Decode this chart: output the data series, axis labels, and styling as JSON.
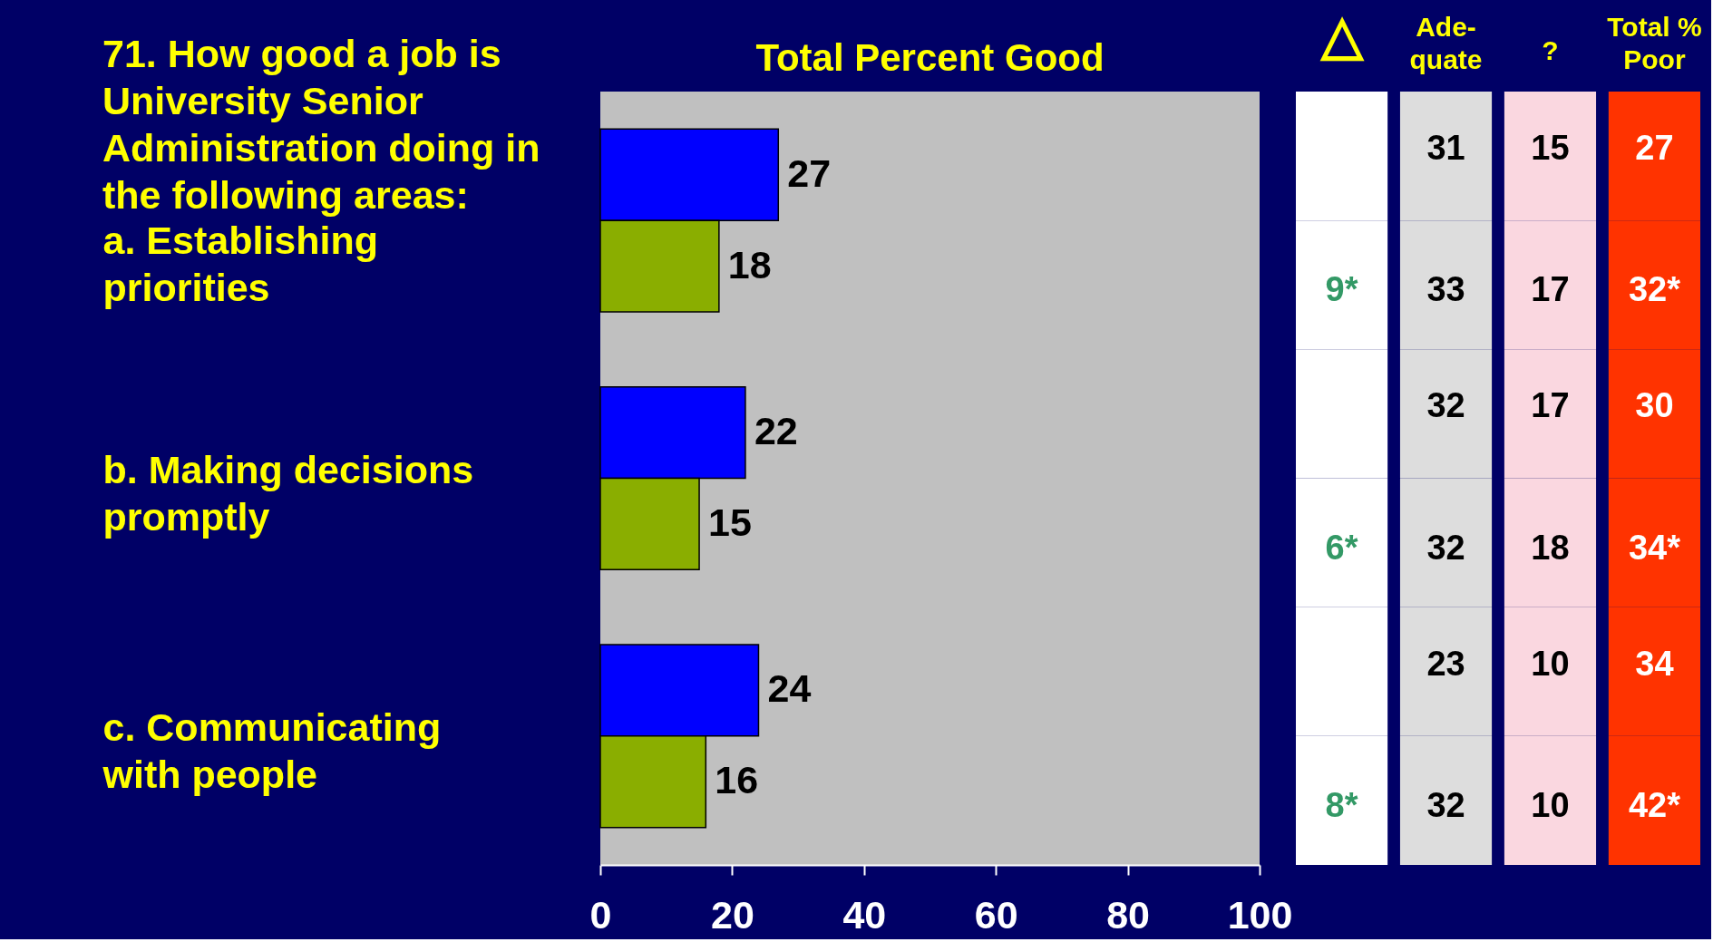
{
  "chart_data": [
    {
      "type": "bar",
      "orientation": "horizontal",
      "title": "Total Percent Good",
      "categories": [
        "a. Establishing\npriorities",
        "b. Making decisions\npromptly",
        "c. Communicating\nwith people"
      ],
      "series": [
        {
          "color": "#0000ff",
          "values": [
            27,
            22,
            24
          ]
        },
        {
          "color": "#8aae00",
          "values": [
            18,
            15,
            16
          ]
        }
      ],
      "xlim": [
        0,
        100
      ],
      "xticks": [
        0,
        20,
        40,
        60,
        80,
        100
      ],
      "data_labels": true,
      "annotations": [
        "71. How good a job is\nUniversity Senior\nAdministration doing in\nthe following areas:"
      ]
    },
    {
      "type": "heatmap",
      "categories": [
        "△",
        "Ade-\nquate",
        "?",
        "Total %\nPoor"
      ],
      "y_categories": [
        null,
        null,
        null,
        null,
        null,
        null
      ],
      "cells": [
        [
          null,
          31,
          15,
          27
        ],
        [
          9,
          33,
          17,
          32
        ],
        [
          null,
          32,
          17,
          30
        ],
        [
          6,
          32,
          18,
          34
        ],
        [
          null,
          23,
          10,
          34
        ],
        [
          8,
          32,
          10,
          42
        ]
      ],
      "cell_labels": [
        [
          null,
          "31",
          "15",
          "27"
        ],
        [
          "9*",
          "33",
          "17",
          "32*"
        ],
        [
          null,
          "32",
          "17",
          "30"
        ],
        [
          "6*",
          "32",
          "18",
          "34*"
        ],
        [
          null,
          "23",
          "10",
          "34"
        ],
        [
          "8*",
          "32",
          "10",
          "42*"
        ]
      ],
      "colors": [
        "#ffffff",
        "#dddddd",
        "#fad7e0",
        "#ff3300"
      ]
    }
  ]
}
